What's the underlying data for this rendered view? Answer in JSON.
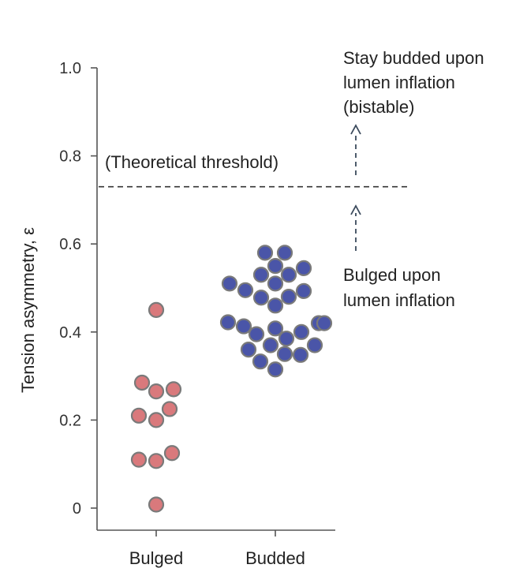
{
  "chart_data": {
    "type": "scatter",
    "title": "",
    "xlabel": "",
    "ylabel": "Tension asymmetry, ε",
    "ylim": [
      0,
      1.0
    ],
    "yticks": [
      0,
      0.2,
      0.4,
      0.6,
      0.8,
      1.0
    ],
    "ytick_labels": [
      "0",
      "0.2",
      "0.4",
      "0.6",
      "0.8",
      "1.0"
    ],
    "categories": [
      "Bulged",
      "Budded"
    ],
    "threshold": {
      "value": 0.73,
      "label": "(Theoretical threshold)"
    },
    "annotations": {
      "above": [
        "Stay budded upon",
        "lumen inflation",
        "(bistable)"
      ],
      "below": [
        "Bulged upon",
        "lumen inflation"
      ]
    },
    "colors": {
      "bulged": "#d9797c",
      "budded": "#4a55a8",
      "edge": "#7a7a7a",
      "axis": "#555555",
      "arrow": "#3b4a5c"
    },
    "series": [
      {
        "name": "Bulged",
        "points": [
          {
            "x": 0.0,
            "y": 0.45
          },
          {
            "x": -0.18,
            "y": 0.285
          },
          {
            "x": 0.0,
            "y": 0.265
          },
          {
            "x": 0.22,
            "y": 0.27
          },
          {
            "x": -0.22,
            "y": 0.21
          },
          {
            "x": 0.0,
            "y": 0.2
          },
          {
            "x": 0.17,
            "y": 0.225
          },
          {
            "x": -0.22,
            "y": 0.11
          },
          {
            "x": 0.0,
            "y": 0.107
          },
          {
            "x": 0.2,
            "y": 0.125
          },
          {
            "x": 0.0,
            "y": 0.008
          }
        ]
      },
      {
        "name": "Budded",
        "points": [
          {
            "x": -0.13,
            "y": 0.58
          },
          {
            "x": 0.12,
            "y": 0.58
          },
          {
            "x": 0.0,
            "y": 0.55
          },
          {
            "x": 0.36,
            "y": 0.545
          },
          {
            "x": -0.18,
            "y": 0.53
          },
          {
            "x": 0.17,
            "y": 0.53
          },
          {
            "x": 0.0,
            "y": 0.51
          },
          {
            "x": -0.58,
            "y": 0.51
          },
          {
            "x": -0.38,
            "y": 0.495
          },
          {
            "x": 0.36,
            "y": 0.493
          },
          {
            "x": -0.18,
            "y": 0.478
          },
          {
            "x": 0.17,
            "y": 0.48
          },
          {
            "x": 0.0,
            "y": 0.46
          },
          {
            "x": -0.6,
            "y": 0.422
          },
          {
            "x": -0.4,
            "y": 0.413
          },
          {
            "x": 0.0,
            "y": 0.408
          },
          {
            "x": -0.24,
            "y": 0.395
          },
          {
            "x": 0.33,
            "y": 0.4
          },
          {
            "x": 0.14,
            "y": 0.385
          },
          {
            "x": 0.55,
            "y": 0.42
          },
          {
            "x": 0.62,
            "y": 0.42
          },
          {
            "x": -0.34,
            "y": 0.36
          },
          {
            "x": -0.06,
            "y": 0.37
          },
          {
            "x": 0.5,
            "y": 0.37
          },
          {
            "x": 0.12,
            "y": 0.35
          },
          {
            "x": 0.32,
            "y": 0.348
          },
          {
            "x": -0.19,
            "y": 0.333
          },
          {
            "x": 0.0,
            "y": 0.315
          }
        ]
      }
    ]
  }
}
